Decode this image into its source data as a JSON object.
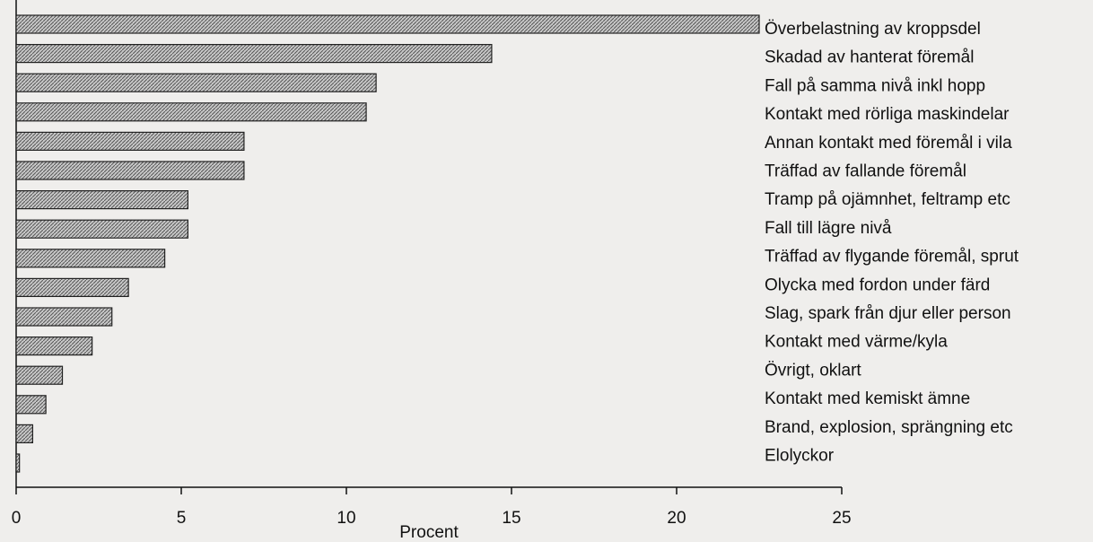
{
  "chart_data": {
    "type": "barh",
    "categories": [
      "Överbelastning av kroppsdel",
      "Skadad av hanterat föremål",
      "Fall på samma nivå inkl hopp",
      "Kontakt med rörliga maskindelar",
      "Annan kontakt med föremål i vila",
      "Träffad av fallande föremål",
      "Tramp på ojämnhet, feltramp etc",
      "Fall till lägre nivå",
      "Träffad av flygande föremål, sprut",
      "Olycka med fordon under färd",
      "Slag, spark från djur eller person",
      "Kontakt med värme/kyla",
      "Övrigt, oklart",
      "Kontakt med kemiskt ämne",
      "Brand, explosion, sprängning etc",
      "Elolyckor"
    ],
    "values": [
      22.5,
      14.4,
      10.9,
      10.6,
      6.9,
      6.9,
      5.2,
      5.2,
      4.5,
      3.4,
      2.9,
      2.3,
      1.4,
      0.9,
      0.5,
      0.1
    ],
    "color": "#9a9a9a",
    "xlabel": "Procent",
    "xlim": [
      0,
      25
    ],
    "xticks": [
      0,
      5,
      10,
      15,
      20,
      25
    ],
    "grid": false
  }
}
